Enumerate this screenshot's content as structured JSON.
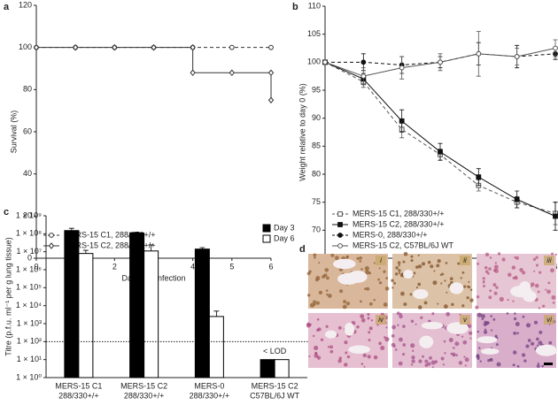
{
  "chart_data": [
    {
      "panel": "a",
      "type": "line",
      "xlabel": "Day post-infection",
      "ylabel": "Survival (%)",
      "xlim": [
        0,
        6
      ],
      "xticks": [
        0,
        1,
        2,
        3,
        4,
        5,
        6
      ],
      "ylim": [
        0,
        120
      ],
      "yticks": [
        0,
        20,
        40,
        60,
        80,
        100,
        120
      ],
      "legend": "lower left",
      "series": [
        {
          "name": "MERS-15 C1, 288/330+/+",
          "color": "#333333",
          "dash": true,
          "marker": "circle-open",
          "x": [
            0,
            1,
            2,
            3,
            4,
            5,
            6
          ],
          "values": [
            100,
            100,
            100,
            100,
            100,
            100,
            100
          ]
        },
        {
          "name": "MERS-15 C2, 288/330+/+",
          "color": "#333333",
          "dash": false,
          "marker": "diamond",
          "x": [
            0,
            1,
            2,
            3,
            4,
            4,
            5,
            6,
            6
          ],
          "values": [
            100,
            100,
            100,
            100,
            100,
            88,
            88,
            88,
            75
          ]
        }
      ]
    },
    {
      "panel": "b",
      "type": "line",
      "xlabel": "Day post-infection",
      "ylabel": "Weight relative to day 0 (%)",
      "xlim": [
        0,
        6
      ],
      "xticks": [
        0,
        1,
        2,
        3,
        4,
        5,
        6
      ],
      "ylim": [
        65,
        110
      ],
      "yticks": [
        65,
        70,
        75,
        80,
        85,
        90,
        95,
        100,
        105,
        110
      ],
      "legend": "lower left",
      "series": [
        {
          "name": "MERS-15 C1, 288/330+/+",
          "color": "#555555",
          "dash": true,
          "marker": "square-open",
          "x": [
            0,
            1,
            2,
            3,
            4,
            5,
            6
          ],
          "values": [
            100,
            96.5,
            88,
            83.5,
            78,
            75,
            73
          ],
          "errors": [
            0,
            1,
            1.5,
            1,
            1,
            1,
            2
          ]
        },
        {
          "name": "MERS-15 C2, 288/330+/+",
          "color": "#111111",
          "dash": false,
          "marker": "square",
          "x": [
            0,
            1,
            2,
            3,
            4,
            5,
            6
          ],
          "values": [
            100,
            97,
            89.5,
            84,
            79.5,
            75.5,
            72.5
          ],
          "errors": [
            0,
            1,
            2,
            1.5,
            1.5,
            1.5,
            2.5
          ]
        },
        {
          "name": "MERS-0, 288/330+/+",
          "color": "#111111",
          "dash": true,
          "marker": "circle",
          "x": [
            0,
            1,
            2,
            3,
            4,
            5,
            6
          ],
          "values": [
            100,
            100,
            99.5,
            100,
            101.5,
            101,
            101.5
          ],
          "errors": [
            0,
            1.5,
            1.5,
            1,
            2,
            2,
            1
          ]
        },
        {
          "name": "MERS-15 C2, C57BL/6J WT",
          "color": "#555555",
          "dash": false,
          "marker": "circle-open",
          "x": [
            0,
            1,
            2,
            3,
            4,
            5,
            6
          ],
          "values": [
            100,
            97.5,
            99,
            100,
            101.5,
            101,
            102.5
          ],
          "errors": [
            0,
            1.5,
            2,
            1.5,
            4,
            1.5,
            1.5
          ]
        }
      ]
    },
    {
      "panel": "c",
      "type": "bar",
      "log": true,
      "ylabel": "Titre (p.f.u. ml⁻¹ per g lung tissue)",
      "ylim": [
        1,
        1000000000
      ],
      "yticks": [
        {
          "value": 1,
          "label": "1 × 10⁰"
        },
        {
          "value": 10,
          "label": "1 × 10¹"
        },
        {
          "value": 100,
          "label": "1 × 10²"
        },
        {
          "value": 1000,
          "label": "1 × 10³"
        },
        {
          "value": 10000,
          "label": "1 × 10⁴"
        },
        {
          "value": 100000,
          "label": "1 × 10⁵"
        },
        {
          "value": 1000000,
          "label": "1 × 10⁶"
        },
        {
          "value": 10000000,
          "label": "1 × 10⁷"
        },
        {
          "value": 100000000,
          "label": "1 × 10⁸"
        },
        {
          "value": 1000000000,
          "label": "1 × 10⁹"
        }
      ],
      "categories": [
        [
          "MERS-15 C1",
          "288/330+/+"
        ],
        [
          "MERS-15 C2",
          "288/330+/+"
        ],
        [
          "MERS-0",
          "288/330+/+"
        ],
        [
          "MERS-15 C2",
          "C57BL/6J WT"
        ]
      ],
      "legend": "upper right",
      "lod": {
        "value": 100,
        "label": "LOD"
      },
      "annotation": "< LOD",
      "series": [
        {
          "name": "Day 3",
          "color": "#000000",
          "values": [
            150000000,
            110000000,
            14000000,
            10
          ],
          "errors": [
            50000000,
            15000000,
            3000000,
            0
          ]
        },
        {
          "name": "Day 6",
          "color": "#ffffff",
          "values": [
            8000000,
            11000000,
            2500,
            10
          ],
          "errors": [
            4000000,
            13000000,
            2500,
            0
          ]
        }
      ]
    }
  ],
  "panel_d": {
    "panel": "d",
    "labels": [
      "i",
      "ii",
      "iii",
      "iv",
      "v",
      "vi"
    ]
  }
}
